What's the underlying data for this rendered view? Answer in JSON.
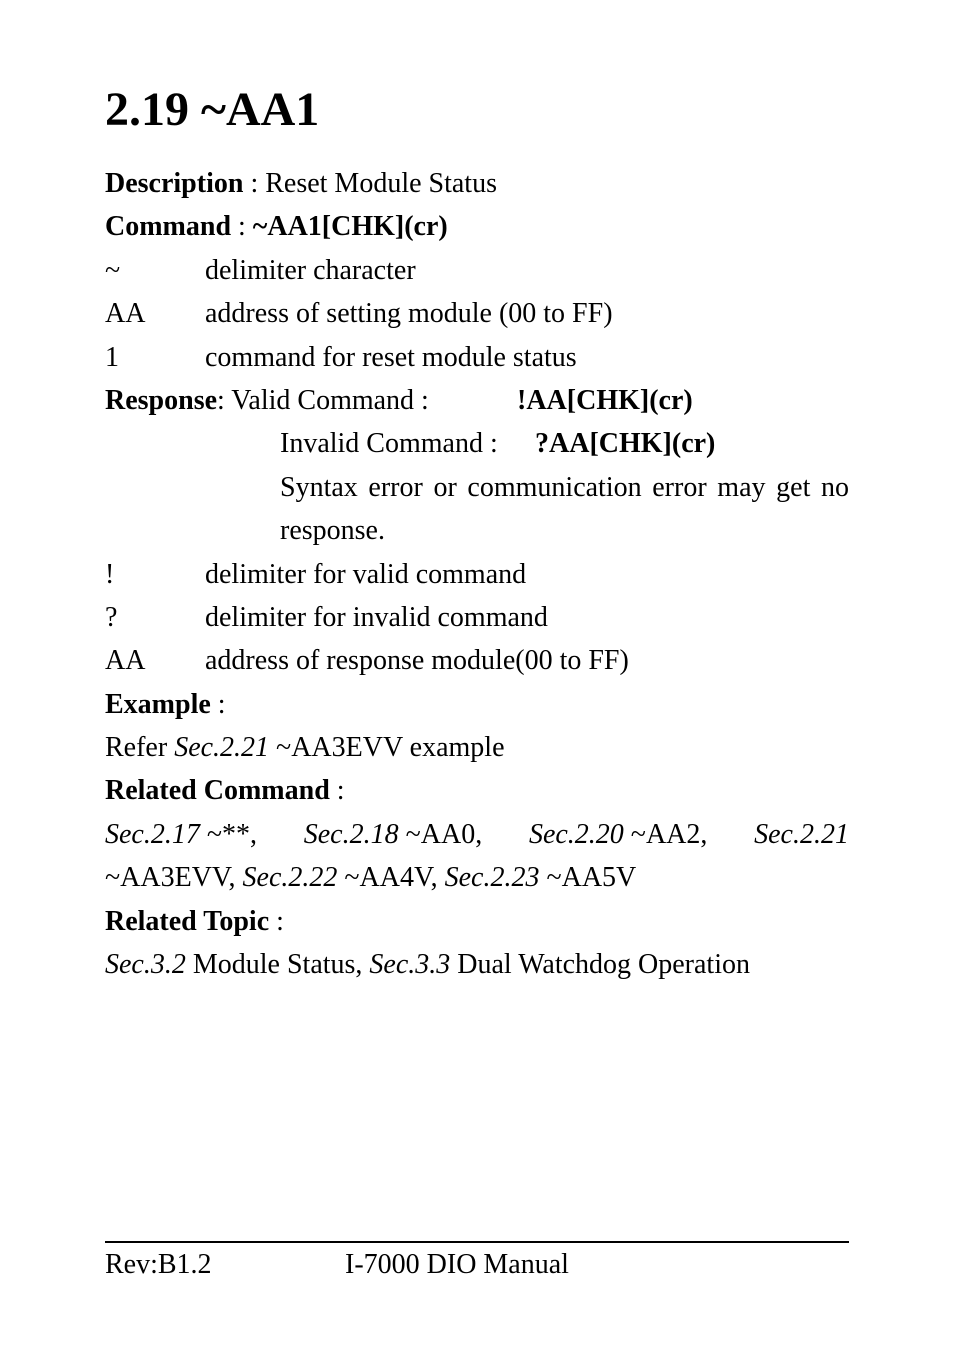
{
  "section": {
    "title": "2.19 ~AA1"
  },
  "description": {
    "label": "Description",
    "text": " : Reset Module Status"
  },
  "command": {
    "label": "Command",
    "text": " : ",
    "syntax": "~AA1[CHK](cr)"
  },
  "command_params": [
    {
      "sym": "~",
      "desc": "delimiter character"
    },
    {
      "sym": "AA",
      "desc": "address of setting module (00 to FF)"
    },
    {
      "sym": "1",
      "desc": "command for reset module status"
    }
  ],
  "response": {
    "label": "Response",
    "valid_label": " : Valid Command :",
    "valid_code": "!AA[CHK](cr)",
    "invalid_label": "Invalid Command :",
    "invalid_code": "?AA[CHK](cr)",
    "note1": "Syntax error or communication error may get no",
    "note2": "response."
  },
  "response_params": [
    {
      "sym": "!",
      "desc": "delimiter for valid command"
    },
    {
      "sym": "?",
      "desc": "delimiter for invalid command"
    },
    {
      "sym": "AA",
      "desc": "address of response module(00 to FF)"
    }
  ],
  "example": {
    "label": "Example",
    "colon": " :",
    "line_prefix": "Refer ",
    "line_ref": "Sec.2.21",
    "line_suffix": " ~AA3EVV example"
  },
  "related_command": {
    "label": "Related Command",
    "colon": " :",
    "line1": {
      "parts": [
        {
          "italic": true,
          "text": "Sec.2.17"
        },
        {
          "italic": false,
          "text": " ~**, "
        },
        {
          "italic": true,
          "text": "Sec.2.18"
        },
        {
          "italic": false,
          "text": " ~AA0, "
        },
        {
          "italic": true,
          "text": "Sec.2.20"
        },
        {
          "italic": false,
          "text": " ~AA2, "
        },
        {
          "italic": true,
          "text": "Sec.2.21"
        }
      ]
    },
    "line2": {
      "parts": [
        {
          "italic": false,
          "text": "~AA3EVV, "
        },
        {
          "italic": true,
          "text": "Sec.2.22"
        },
        {
          "italic": false,
          "text": " ~AA4V, "
        },
        {
          "italic": true,
          "text": "Sec.2.23"
        },
        {
          "italic": false,
          "text": " ~AA5V"
        }
      ]
    }
  },
  "related_topic": {
    "label": "Related Topic",
    "colon": " :",
    "line": {
      "parts": [
        {
          "italic": true,
          "text": "Sec.3.2"
        },
        {
          "italic": false,
          "text": " Module Status, "
        },
        {
          "italic": true,
          "text": "Sec.3.3"
        },
        {
          "italic": false,
          "text": " Dual Watchdog Operation"
        }
      ]
    }
  },
  "footer": {
    "left": "Rev:B1.2",
    "center": "I-7000 DIO Manual"
  }
}
